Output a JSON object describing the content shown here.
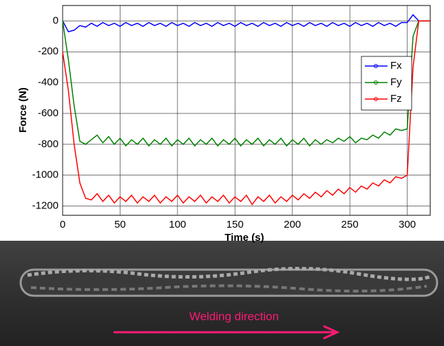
{
  "chart_data": {
    "type": "line",
    "xlabel": "Time (s)",
    "ylabel": "Force (N)",
    "x": [
      0,
      5,
      10,
      15,
      20,
      25,
      30,
      35,
      40,
      45,
      50,
      55,
      60,
      65,
      70,
      75,
      80,
      85,
      90,
      95,
      100,
      105,
      110,
      115,
      120,
      125,
      130,
      135,
      140,
      145,
      150,
      155,
      160,
      165,
      170,
      175,
      180,
      185,
      190,
      195,
      200,
      205,
      210,
      215,
      220,
      225,
      230,
      235,
      240,
      245,
      250,
      255,
      260,
      265,
      270,
      275,
      280,
      285,
      290,
      295,
      300,
      305,
      310,
      315,
      320
    ],
    "series": [
      {
        "name": "Fx",
        "color": "#0000ff",
        "values": [
          0,
          -70,
          -60,
          -30,
          -40,
          -15,
          -35,
          -10,
          -30,
          -15,
          -35,
          -10,
          -30,
          -15,
          -35,
          -10,
          -30,
          -15,
          -35,
          -10,
          -30,
          -15,
          -35,
          -10,
          -30,
          -15,
          -35,
          -10,
          -30,
          -15,
          -35,
          -10,
          -30,
          -15,
          -35,
          -10,
          -30,
          -15,
          -35,
          -10,
          -30,
          -15,
          -35,
          -10,
          -30,
          -15,
          -35,
          -10,
          -30,
          -15,
          -35,
          -10,
          -30,
          -15,
          -35,
          -10,
          -30,
          -15,
          -35,
          -10,
          -10,
          40,
          0,
          0,
          0
        ]
      },
      {
        "name": "Fy",
        "color": "#008000",
        "values": [
          0,
          -250,
          -550,
          -780,
          -800,
          -770,
          -740,
          -790,
          -750,
          -800,
          -760,
          -810,
          -770,
          -800,
          -760,
          -810,
          -770,
          -800,
          -760,
          -810,
          -770,
          -800,
          -760,
          -810,
          -770,
          -800,
          -760,
          -810,
          -770,
          -800,
          -760,
          -810,
          -770,
          -800,
          -760,
          -810,
          -770,
          -800,
          -760,
          -810,
          -770,
          -800,
          -760,
          -810,
          -770,
          -800,
          -770,
          -790,
          -760,
          -780,
          -750,
          -790,
          -760,
          -770,
          -740,
          -760,
          -720,
          -740,
          -700,
          -710,
          -700,
          -100,
          0,
          0,
          0
        ]
      },
      {
        "name": "Fz",
        "color": "#ff0000",
        "values": [
          -200,
          -450,
          -800,
          -1050,
          -1150,
          -1160,
          -1120,
          -1170,
          -1130,
          -1180,
          -1140,
          -1170,
          -1130,
          -1180,
          -1140,
          -1170,
          -1130,
          -1180,
          -1140,
          -1170,
          -1130,
          -1180,
          -1140,
          -1170,
          -1130,
          -1180,
          -1140,
          -1170,
          -1130,
          -1180,
          -1140,
          -1170,
          -1130,
          -1190,
          -1140,
          -1170,
          -1130,
          -1180,
          -1140,
          -1170,
          -1130,
          -1160,
          -1120,
          -1150,
          -1110,
          -1140,
          -1100,
          -1130,
          -1090,
          -1120,
          -1080,
          -1110,
          -1070,
          -1090,
          -1050,
          -1070,
          -1030,
          -1050,
          -1010,
          -1020,
          -1000,
          -300,
          0,
          0,
          0
        ]
      }
    ],
    "xlim": [
      0,
      320
    ],
    "xticks": [
      0,
      50,
      100,
      150,
      200,
      250,
      300
    ],
    "ylim": [
      -1260,
      100
    ],
    "yticks": [
      0,
      -200,
      -400,
      -600,
      -800,
      -1000,
      -1200
    ],
    "grid": true,
    "legend": "upper right"
  },
  "photo": {
    "caption": "Welding direction"
  }
}
